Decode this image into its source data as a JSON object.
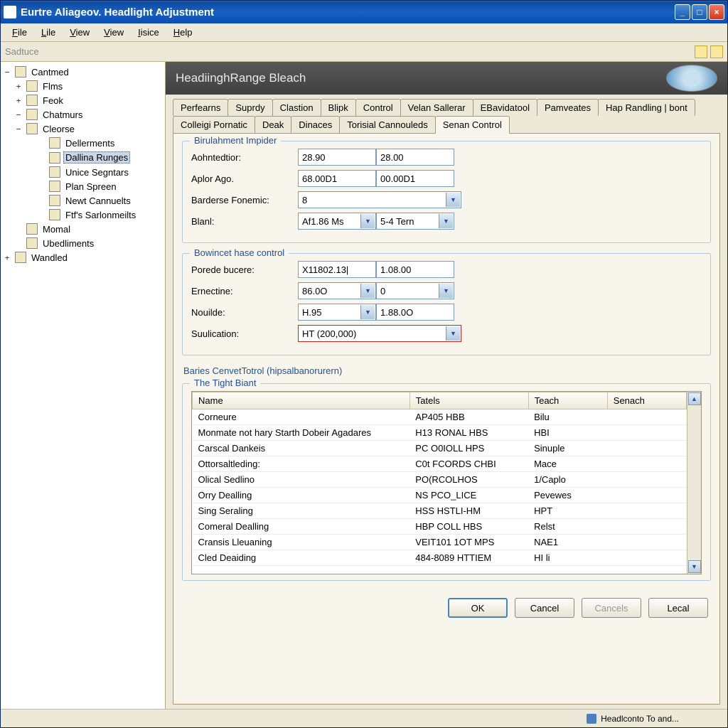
{
  "colors": {
    "titlebar_start": "#1860c3",
    "titlebar_end": "#0a4eb0",
    "close": "#d0391e",
    "chrome": "#ece9d8",
    "panel": "#f8f6ec",
    "group_border": "#b0c8e0",
    "link": "#2050a0",
    "field_border": "#7a9ac0",
    "error_border": "#d02020"
  },
  "window": {
    "title": "Eurtre Aliageov. Headlight Adjustment"
  },
  "menu": {
    "items": [
      "File",
      "Lile",
      "View",
      "View",
      "Iisice",
      "Help"
    ]
  },
  "toolbar": {
    "label": "Sadtuce"
  },
  "tree": {
    "root": "Cantmed",
    "nodes": [
      {
        "lvl": 2,
        "exp": "+",
        "label": "Flms"
      },
      {
        "lvl": 2,
        "exp": "+",
        "label": "Feok"
      },
      {
        "lvl": 2,
        "exp": "−",
        "label": "Chatmurs"
      },
      {
        "lvl": 2,
        "exp": "−",
        "label": "Cleorse"
      },
      {
        "lvl": 3,
        "exp": "",
        "label": "Dellerments"
      },
      {
        "lvl": 3,
        "exp": "",
        "label": "Dallina Runges",
        "selected": true
      },
      {
        "lvl": 3,
        "exp": "",
        "label": "Unice Segntars"
      },
      {
        "lvl": 3,
        "exp": "",
        "label": "Plan Spreen"
      },
      {
        "lvl": 3,
        "exp": "",
        "label": "Newt Cannuelts"
      },
      {
        "lvl": 3,
        "exp": "",
        "label": "Ftf's Sarlonmeilts"
      },
      {
        "lvl": 2,
        "exp": "",
        "label": "Momal"
      },
      {
        "lvl": 2,
        "exp": "",
        "label": "Ubedliments"
      },
      {
        "lvl": 1,
        "exp": "+",
        "label": "Wandled"
      }
    ]
  },
  "header": {
    "title": "HeadiinghRange Bleach"
  },
  "tabs": {
    "row1": [
      "Perfearns",
      "Suprdy",
      "Clastion",
      "Blipk",
      "Control",
      "Velan Sallerar",
      "EBavidatool",
      "Pamveates",
      "Hap Randling | bont"
    ],
    "row2": [
      "Colleigi Pornatic",
      "Deak",
      "Dinaces",
      "Torisial Cannouleds",
      "Senan Control"
    ],
    "active": "Senan Control"
  },
  "group1": {
    "title": "Birulahment Impider",
    "rows": [
      {
        "label": "Aohntedtior:",
        "f1": "28.90",
        "f2": "28.00",
        "type": "text2"
      },
      {
        "label": "Aplor Ago.",
        "f1": "68.00D1",
        "f2": "00.00D1",
        "type": "text2"
      },
      {
        "label": "Barderse Fonemic:",
        "f1": "8",
        "type": "combo1"
      },
      {
        "label": "Blanl:",
        "f1": "Af1.86 Ms",
        "f2": "5-4 Tern",
        "type": "combo2"
      }
    ]
  },
  "group2": {
    "title": "Bowincet hase control",
    "rows": [
      {
        "label": "Porede bucere:",
        "f1": "X11802.13|",
        "f2": "1.08.00",
        "type": "text2"
      },
      {
        "label": "Ernectine:",
        "f1": "86.0O",
        "f2": "0",
        "type": "combotext"
      },
      {
        "label": "Nouilde:",
        "f1": "H.95",
        "f2": "1.88.0O",
        "type": "combo2b"
      },
      {
        "label": "Suulication:",
        "f1": "HT (200,000)",
        "type": "combo1red"
      }
    ]
  },
  "section_link": "Baries CenvetTotrol (hipsalbanorurern)",
  "table": {
    "group_title": "The Tight Biant",
    "columns": [
      "Name",
      "Tatels",
      "Teach",
      "Senach"
    ],
    "col_widths": [
      "44%",
      "24%",
      "16%",
      "16%"
    ],
    "rows": [
      [
        "Corneure",
        "AP405 HBB",
        "Bilu",
        ""
      ],
      [
        "Monmate not hary Starth Dobeir Agadares",
        "H13 RONAL HBS",
        "HBI",
        ""
      ],
      [
        "Carscal Dankeis",
        "PC O0IOLL HPS",
        "Sinuple",
        ""
      ],
      [
        "Ottorsaltleding:",
        "C0t FCORDS CHBI",
        "Mace",
        ""
      ],
      [
        "Olical Sedlino",
        "PO(RCOLHOS",
        "1/Caplo",
        ""
      ],
      [
        "Orry Dealling",
        "NS PCO_LICE",
        "Pevewes",
        ""
      ],
      [
        "Sing Seraling",
        "HSS HSTLI-HM",
        "HPT",
        ""
      ],
      [
        "Comeral Dealling",
        "HBP COLL HBS",
        "Relst",
        ""
      ],
      [
        "Cransis Lleuaning",
        "VEIT101 1OT MPS",
        "NAE1",
        ""
      ],
      [
        "Cled Deaiding",
        "484-8089 HTTIEM",
        "HI li",
        ""
      ]
    ]
  },
  "buttons": {
    "ok": "OK",
    "cancel": "Cancel",
    "cancels": "Cancels",
    "local": "Lecal"
  },
  "status": {
    "text": "Headlconto To and..."
  }
}
